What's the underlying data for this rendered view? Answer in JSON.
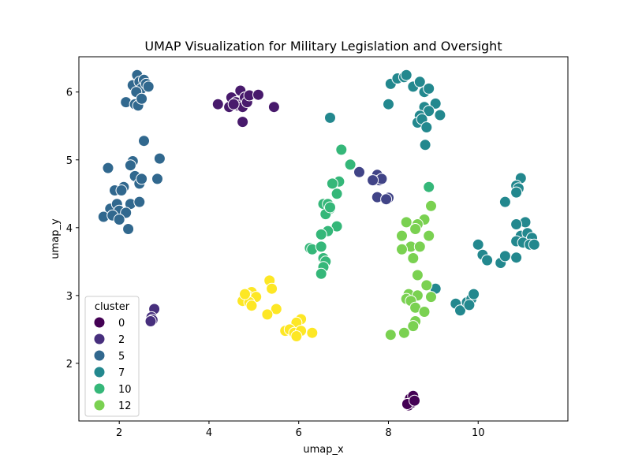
{
  "chart_data": {
    "type": "scatter",
    "title": "UMAP Visualization for Military Legislation and Oversight",
    "xlabel": "umap_x",
    "ylabel": "umap_y",
    "xlim": [
      1.1,
      12.0
    ],
    "ylim": [
      1.15,
      6.52
    ],
    "xticks": [
      "2",
      "4",
      "6",
      "8",
      "10"
    ],
    "yticks": [
      "2",
      "3",
      "4",
      "5",
      "6"
    ],
    "grid": false,
    "legend": {
      "title": "cluster",
      "placement": "lower-left",
      "entries": [
        "0",
        "2",
        "5",
        "7",
        "10",
        "12"
      ]
    },
    "colormap": {
      "0": "#440154",
      "1": "#481a6c",
      "2": "#472f7d",
      "3": "#414487",
      "4": "#39568c",
      "5": "#31688e",
      "6": "#2a788e",
      "7": "#23888e",
      "8": "#1f988b",
      "9": "#22a884",
      "10": "#35b779",
      "11": "#54c568",
      "12": "#7ad151",
      "13": "#a5db36",
      "14": "#d2e21b",
      "15": "#fde725"
    },
    "series": [
      {
        "cluster": 0,
        "points": [
          [
            8.45,
            1.38
          ],
          [
            8.52,
            1.42
          ],
          [
            8.48,
            1.48
          ],
          [
            8.55,
            1.52
          ],
          [
            8.42,
            1.4
          ],
          [
            8.58,
            1.45
          ]
        ]
      },
      {
        "cluster": 1,
        "points": [
          [
            4.2,
            5.82
          ],
          [
            4.45,
            5.78
          ],
          [
            4.5,
            5.92
          ],
          [
            4.6,
            5.85
          ],
          [
            4.7,
            6.02
          ],
          [
            4.65,
            5.8
          ],
          [
            4.8,
            5.92
          ],
          [
            4.75,
            5.78
          ],
          [
            4.85,
            5.85
          ],
          [
            4.9,
            5.95
          ],
          [
            4.75,
            5.56
          ],
          [
            5.1,
            5.96
          ],
          [
            5.45,
            5.78
          ],
          [
            4.55,
            5.82
          ]
        ]
      },
      {
        "cluster": 2,
        "points": [
          [
            2.78,
            2.8
          ],
          [
            2.72,
            2.68
          ],
          [
            2.74,
            2.64
          ],
          [
            2.7,
            2.62
          ]
        ]
      },
      {
        "cluster": 3,
        "points": [
          [
            7.35,
            4.82
          ],
          [
            7.7,
            4.72
          ],
          [
            7.75,
            4.78
          ],
          [
            7.8,
            4.7
          ],
          [
            7.85,
            4.72
          ],
          [
            7.75,
            4.45
          ],
          [
            8.0,
            4.44
          ],
          [
            7.95,
            4.42
          ],
          [
            7.65,
            4.7
          ]
        ]
      },
      {
        "cluster": 5,
        "points": [
          [
            2.15,
            5.85
          ],
          [
            2.3,
            6.1
          ],
          [
            2.35,
            5.82
          ],
          [
            2.4,
            6.25
          ],
          [
            2.45,
            6.15
          ],
          [
            2.5,
            6.05
          ],
          [
            2.55,
            6.18
          ],
          [
            2.6,
            6.12
          ],
          [
            2.65,
            6.08
          ],
          [
            2.38,
            6.0
          ],
          [
            2.42,
            5.8
          ],
          [
            2.5,
            5.9
          ],
          [
            2.55,
            5.28
          ],
          [
            2.9,
            5.02
          ],
          [
            2.3,
            4.98
          ],
          [
            1.75,
            4.88
          ],
          [
            2.25,
            4.92
          ],
          [
            2.35,
            4.76
          ],
          [
            2.45,
            4.65
          ],
          [
            2.5,
            4.72
          ],
          [
            2.85,
            4.72
          ],
          [
            1.9,
            4.55
          ],
          [
            2.1,
            4.6
          ],
          [
            2.05,
            4.55
          ],
          [
            2.25,
            4.35
          ],
          [
            2.45,
            4.38
          ],
          [
            1.8,
            4.28
          ],
          [
            1.95,
            4.35
          ],
          [
            2.0,
            4.25
          ],
          [
            2.15,
            4.22
          ],
          [
            1.65,
            4.16
          ],
          [
            1.85,
            4.18
          ],
          [
            2.0,
            4.12
          ],
          [
            2.2,
            3.98
          ]
        ]
      },
      {
        "cluster": 7,
        "points": [
          [
            8.05,
            6.12
          ],
          [
            8.2,
            6.2
          ],
          [
            8.35,
            6.22
          ],
          [
            8.4,
            6.25
          ],
          [
            8.55,
            6.08
          ],
          [
            8.7,
            6.15
          ],
          [
            8.8,
            6.0
          ],
          [
            8.9,
            6.05
          ],
          [
            8.0,
            5.82
          ],
          [
            8.8,
            5.78
          ],
          [
            9.05,
            5.83
          ],
          [
            8.9,
            5.72
          ],
          [
            8.7,
            5.65
          ],
          [
            8.65,
            5.55
          ],
          [
            8.75,
            5.6
          ],
          [
            9.15,
            5.66
          ],
          [
            8.85,
            5.48
          ],
          [
            8.82,
            5.22
          ],
          [
            6.7,
            5.62
          ],
          [
            10.95,
            4.73
          ],
          [
            10.85,
            4.62
          ],
          [
            10.9,
            4.58
          ],
          [
            10.85,
            4.52
          ],
          [
            10.6,
            4.38
          ],
          [
            11.05,
            4.08
          ],
          [
            10.85,
            4.05
          ],
          [
            10.95,
            3.88
          ],
          [
            11.1,
            3.92
          ],
          [
            11.2,
            3.85
          ],
          [
            10.85,
            3.8
          ],
          [
            11.0,
            3.78
          ],
          [
            11.15,
            3.75
          ],
          [
            11.25,
            3.75
          ],
          [
            10.0,
            3.75
          ],
          [
            10.1,
            3.6
          ],
          [
            10.2,
            3.52
          ],
          [
            10.5,
            3.48
          ],
          [
            10.6,
            3.58
          ],
          [
            10.85,
            3.56
          ],
          [
            9.05,
            3.1
          ],
          [
            9.5,
            2.88
          ],
          [
            9.6,
            2.78
          ],
          [
            9.75,
            2.9
          ],
          [
            9.85,
            2.95
          ],
          [
            9.9,
            3.02
          ],
          [
            9.8,
            2.86
          ]
        ]
      },
      {
        "cluster": 10,
        "points": [
          [
            6.95,
            5.15
          ],
          [
            7.15,
            4.93
          ],
          [
            6.9,
            4.68
          ],
          [
            6.75,
            4.65
          ],
          [
            6.85,
            4.5
          ],
          [
            6.55,
            4.35
          ],
          [
            6.65,
            4.35
          ],
          [
            6.7,
            4.28
          ],
          [
            6.6,
            4.2
          ],
          [
            6.7,
            4.3
          ],
          [
            6.85,
            4.02
          ],
          [
            6.65,
            3.95
          ],
          [
            6.5,
            3.9
          ],
          [
            6.25,
            3.7
          ],
          [
            6.3,
            3.68
          ],
          [
            6.5,
            3.72
          ],
          [
            6.55,
            3.55
          ],
          [
            6.6,
            3.5
          ],
          [
            6.55,
            3.42
          ],
          [
            6.5,
            3.32
          ],
          [
            8.9,
            4.6
          ]
        ]
      },
      {
        "cluster": 12,
        "points": [
          [
            8.95,
            4.32
          ],
          [
            8.8,
            4.12
          ],
          [
            8.65,
            4.05
          ],
          [
            8.4,
            4.08
          ],
          [
            8.6,
            3.98
          ],
          [
            8.3,
            3.88
          ],
          [
            8.9,
            3.88
          ],
          [
            8.5,
            3.72
          ],
          [
            8.7,
            3.72
          ],
          [
            8.3,
            3.68
          ],
          [
            8.55,
            3.55
          ],
          [
            8.65,
            3.3
          ],
          [
            8.85,
            3.15
          ],
          [
            8.45,
            3.02
          ],
          [
            8.65,
            3.0
          ],
          [
            8.95,
            2.98
          ],
          [
            8.4,
            2.95
          ],
          [
            8.5,
            2.92
          ],
          [
            8.6,
            2.82
          ],
          [
            8.8,
            2.76
          ],
          [
            8.6,
            2.62
          ],
          [
            8.55,
            2.55
          ],
          [
            8.35,
            2.45
          ],
          [
            8.05,
            2.42
          ]
        ]
      },
      {
        "cluster": 15,
        "points": [
          [
            5.35,
            3.22
          ],
          [
            5.4,
            3.1
          ],
          [
            4.95,
            3.05
          ],
          [
            4.85,
            3.0
          ],
          [
            5.05,
            2.98
          ],
          [
            4.75,
            2.92
          ],
          [
            4.9,
            2.9
          ],
          [
            4.95,
            2.85
          ],
          [
            5.5,
            2.8
          ],
          [
            5.3,
            2.72
          ],
          [
            6.05,
            2.65
          ],
          [
            5.95,
            2.6
          ],
          [
            5.7,
            2.48
          ],
          [
            5.8,
            2.5
          ],
          [
            5.9,
            2.45
          ],
          [
            6.05,
            2.48
          ],
          [
            6.3,
            2.45
          ],
          [
            5.95,
            2.4
          ],
          [
            4.8,
            3.02
          ]
        ]
      }
    ]
  }
}
